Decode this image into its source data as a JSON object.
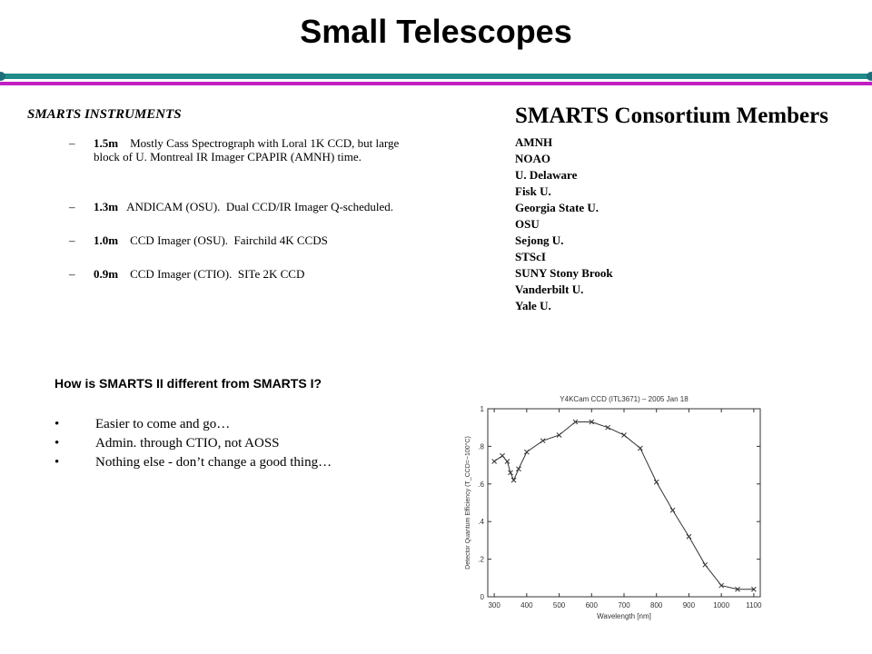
{
  "title": "Small Telescopes",
  "instruments": {
    "heading": "SMARTS  INSTRUMENTS",
    "items": [
      {
        "bold": "1.5m",
        "text": "    Mostly Cass Spectrograph with Loral 1K CCD, but large block of U. Montreal IR Imager CPAPIR (AMNH) time."
      },
      {
        "bold": "1.3m",
        "text": "   ANDICAM (OSU).  Dual CCD/IR Imager Q-scheduled."
      },
      {
        "bold": "1.0m",
        "text": "    CCD Imager (OSU).  Fairchild 4K CCDS"
      },
      {
        "bold": "0.9m",
        "text": "    CCD Imager (CTIO).  SITe 2K CCD"
      }
    ]
  },
  "members": {
    "heading": "SMARTS Consortium Members",
    "items": [
      "AMNH",
      "NOAO",
      "U. Delaware",
      "Fisk U.",
      "Georgia State U.",
      "OSU",
      "Sejong U.",
      "STScI",
      "SUNY Stony Brook",
      "Vanderbilt U.",
      "Yale U."
    ]
  },
  "comparison": {
    "question": "How is SMARTS II different from SMARTS I?",
    "bullets": [
      "Easier to come and go…",
      "Admin. through CTIO, not AOSS",
      "Nothing else - don’t change a good thing…"
    ]
  },
  "chart_data": {
    "type": "line",
    "title": "Y4KCam CCD (ITL3671) – 2005 Jan 18",
    "xlabel": "Wavelength [nm]",
    "ylabel": "Detector Quantum Efficiency (T_CCD=−100°C)",
    "xlim": [
      280,
      1120
    ],
    "ylim": [
      0,
      1
    ],
    "xticks": [
      300,
      400,
      500,
      600,
      700,
      800,
      900,
      1000,
      1100
    ],
    "yticks": [
      0,
      0.2,
      0.4,
      0.6,
      0.8,
      1
    ],
    "ytick_labels": [
      "0",
      ".2",
      ".4",
      ".6",
      ".8",
      "1"
    ],
    "series": [
      {
        "x": [
          300,
          325,
          340,
          350,
          360,
          375,
          400,
          450,
          500,
          550,
          600,
          650,
          700,
          750,
          800,
          850,
          900,
          950,
          1000,
          1050,
          1100
        ],
        "y": [
          0.72,
          0.75,
          0.72,
          0.66,
          0.62,
          0.68,
          0.77,
          0.83,
          0.86,
          0.93,
          0.93,
          0.9,
          0.86,
          0.79,
          0.61,
          0.46,
          0.32,
          0.17,
          0.06,
          0.04,
          0.04
        ]
      }
    ],
    "grid": false,
    "legend": "none",
    "line_color": "#333333"
  }
}
